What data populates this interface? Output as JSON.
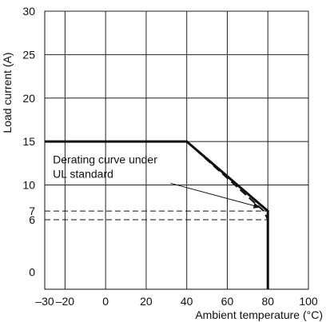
{
  "chart_data": {
    "type": "line",
    "xlabel": "Ambient temperature (°C)",
    "ylabel": "Load current (A)",
    "xlim": [
      -30,
      100
    ],
    "ylim": [
      -2,
      30
    ],
    "grid": true,
    "x_ticks": [
      -30,
      -20,
      0,
      20,
      40,
      60,
      80,
      100
    ],
    "x_tick_labels": [
      "–30",
      "–20",
      "0",
      "20",
      "40",
      "60",
      "80",
      "100"
    ],
    "x_gridlines": [
      -20,
      0,
      20,
      40,
      60,
      80,
      100
    ],
    "y_ticks": [
      0,
      6,
      7,
      10,
      15,
      20,
      25,
      30
    ],
    "y_tick_labels": [
      "0",
      "6",
      "7",
      "10",
      "15",
      "20",
      "25",
      "30"
    ],
    "y_gridlines": [
      10,
      15,
      20,
      25,
      30
    ],
    "series": [
      {
        "style": "solid",
        "x": [
          -30,
          40,
          80,
          80
        ],
        "y": [
          15,
          15,
          7,
          -2
        ]
      },
      {
        "style": "dashed",
        "x": [
          40,
          78,
          80,
          80
        ],
        "y": [
          15,
          7,
          6,
          -2
        ]
      }
    ],
    "reference_lines": [
      {
        "y": 7,
        "x_from": -30,
        "x_to": 80,
        "style": "dashed"
      },
      {
        "y": 6,
        "x_from": -30,
        "x_to": 80,
        "style": "dashed"
      }
    ],
    "annotations": [
      {
        "lines": [
          "Derating curve under",
          "UL standard"
        ],
        "text_x": -26,
        "text_y": 12.5,
        "arrow_from": [
          32,
          10.2
        ],
        "arrow_to": [
          76.5,
          7.4
        ]
      }
    ]
  }
}
